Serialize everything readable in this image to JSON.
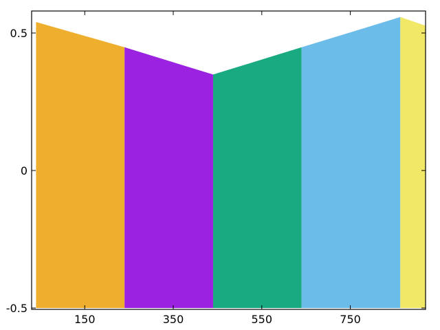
{
  "chart_data": {
    "type": "area",
    "title": "",
    "xlabel": "",
    "ylabel": "",
    "xlim": [
      30,
      920
    ],
    "ylim": [
      -0.505,
      0.58
    ],
    "grid": false,
    "x_ticks": [
      150,
      350,
      550,
      750
    ],
    "x_tick_labels": [
      "150",
      "350",
      "550",
      "750"
    ],
    "y_ticks": [
      0.5,
      0,
      -0.5
    ],
    "y_tick_labels": [
      "0.5",
      "0",
      "-0.5"
    ],
    "band_bottom": -0.5,
    "segments": [
      {
        "color": "#eeaf2e",
        "x": [
          40,
          240
        ],
        "top": [
          0.54,
          0.448
        ]
      },
      {
        "color": "#9b22e0",
        "x": [
          240,
          440
        ],
        "top": [
          0.448,
          0.349
        ]
      },
      {
        "color": "#1aaa82",
        "x": [
          440,
          640
        ],
        "top": [
          0.349,
          0.448
        ]
      },
      {
        "color": "#6bbce8",
        "x": [
          640,
          863
        ],
        "top": [
          0.448,
          0.558
        ]
      },
      {
        "color": "#f2e868",
        "x": [
          863,
          928
        ],
        "top": [
          0.558,
          0.522
        ]
      }
    ]
  }
}
